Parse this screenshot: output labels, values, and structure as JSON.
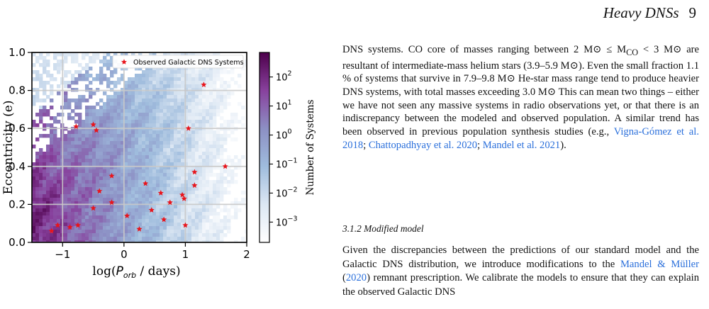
{
  "header": {
    "title": "Heavy DNSs",
    "page_number": "9"
  },
  "chart_data": {
    "type": "heatmap",
    "xlabel": "log(P_orb / days)",
    "ylabel": "Eccentricity (e)",
    "xlim": [
      -1.5,
      2
    ],
    "ylim": [
      0,
      1
    ],
    "xticks": [
      -1,
      0,
      1,
      2
    ],
    "xtick_labels": [
      "−1",
      "0",
      "1",
      "2"
    ],
    "yticks": [
      0.0,
      0.2,
      0.4,
      0.6,
      0.8,
      1.0
    ],
    "ytick_labels": [
      "0.0",
      "0.2",
      "0.4",
      "0.6",
      "0.8",
      "1.0"
    ],
    "grid": true,
    "colorbar": {
      "label": "Number of Systems",
      "scale": "log",
      "range": [
        0.0002,
        700
      ],
      "tick_labels": [
        "10^2",
        "10^1",
        "10^0",
        "10^-1",
        "10^-2",
        "10^-3"
      ],
      "tick_exponents": [
        2,
        1,
        0,
        -1,
        -2,
        -3
      ],
      "colors": [
        "#ffffff",
        "#dce7f3",
        "#9fbcdd",
        "#8c8fc4",
        "#88419d",
        "#4d004b"
      ]
    },
    "legend": {
      "entries": [
        "Observed Galactic DNS Systems"
      ],
      "placement": "top-right",
      "marker_color": "#e8141b"
    },
    "points": [
      {
        "x": -1.18,
        "y": 0.06
      },
      {
        "x": -1.08,
        "y": 0.09
      },
      {
        "x": -0.88,
        "y": 0.08
      },
      {
        "x": -0.75,
        "y": 0.09
      },
      {
        "x": -0.78,
        "y": 0.61
      },
      {
        "x": -0.5,
        "y": 0.62
      },
      {
        "x": -0.45,
        "y": 0.59
      },
      {
        "x": -0.5,
        "y": 0.18
      },
      {
        "x": -0.4,
        "y": 0.27
      },
      {
        "x": -0.2,
        "y": 0.35
      },
      {
        "x": -0.2,
        "y": 0.21
      },
      {
        "x": 0.05,
        "y": 0.14
      },
      {
        "x": 0.25,
        "y": 0.07
      },
      {
        "x": 0.35,
        "y": 0.31
      },
      {
        "x": 0.45,
        "y": 0.17
      },
      {
        "x": 0.6,
        "y": 0.26
      },
      {
        "x": 0.65,
        "y": 0.12
      },
      {
        "x": 0.75,
        "y": 0.21
      },
      {
        "x": 0.95,
        "y": 0.25
      },
      {
        "x": 0.98,
        "y": 0.23
      },
      {
        "x": 1.0,
        "y": 0.09
      },
      {
        "x": 1.05,
        "y": 0.6
      },
      {
        "x": 1.15,
        "y": 0.37
      },
      {
        "x": 1.15,
        "y": 0.3
      },
      {
        "x": 1.3,
        "y": 0.83
      },
      {
        "x": 1.65,
        "y": 0.4
      }
    ]
  },
  "text": {
    "p1": {
      "a": "DNS systems. CO core of masses ranging between 2 M⊙ ≤ M",
      "sub_co": "CO",
      "b": " < 3 M⊙ are resultant of intermediate-mass helium stars (3.9–5.9 M⊙). Even the small fraction 1.1 % of systems that survive in 7.9–9.8 M⊙ He-star mass range tend to produce heavier DNS systems, with total masses exceeding 3.0 M⊙ This can mean two things – either we have not seen any massive systems in radio observations yet, or that there is an indiscrepancy between the modeled and observed population. A similar trend has been observed in previous population synthesis studies (e.g., ",
      "ref1": "Vigna-Gómez et al. 2018",
      "sep1": "; ",
      "ref2": "Chattopadhyay et al. 2020",
      "sep2": "; ",
      "ref3": "Mandel et al. 2021",
      "end": ")."
    },
    "section_heading": "3.1.2  Modified model",
    "p2": {
      "a": "Given the discrepancies between the predictions of our standard model and the Galactic DNS distribution, we introduce modifications to the ",
      "ref1": "Mandel & Müller",
      "ref1_paren_open": " (",
      "ref1_year": "2020",
      "ref1_paren_close": ")",
      "b": " remnant prescription. We calibrate the models to ensure that they can explain the observed Galactic DNS"
    }
  }
}
